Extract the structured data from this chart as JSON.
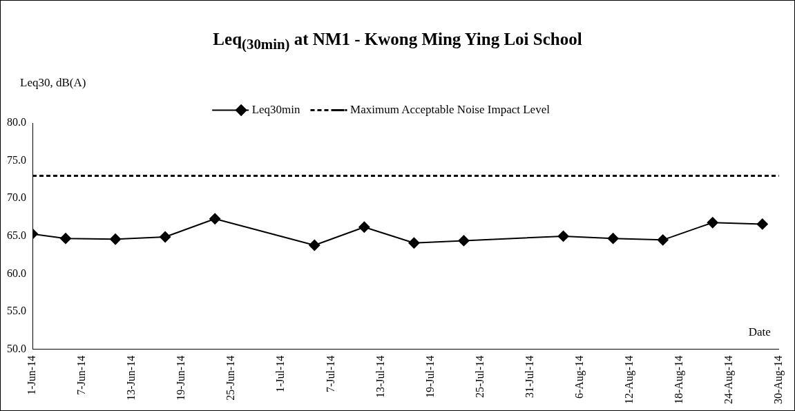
{
  "chart_data": {
    "type": "line",
    "title": "Leq$_{(30min)}$ at NM1 - Kwong Ming Ying Loi School",
    "xlabel": "Date",
    "ylabel": "Leq30, dB(A)",
    "x": [
      "--06-01",
      "--06-05",
      "--06-11",
      "--06-17",
      "--06-23",
      "--07-05",
      "--07-11",
      "--07-17",
      "--07-23",
      "--08-04",
      "--08-10",
      "--08-16",
      "--08-22",
      "--08-28"
    ],
    "series": [
      {
        "name": "Leq30min",
        "color": "#000000",
        "values": [
          65.3,
          64.7,
          64.6,
          64.9,
          67.3,
          63.8,
          66.2,
          64.1,
          64.4,
          65.0,
          64.7,
          64.5,
          66.8,
          66.6
        ]
      }
    ],
    "ref_lines": [
      {
        "axis": "y",
        "value": 73.0,
        "label": "Maximum Acceptable Noise Impact Level",
        "color": "#000000",
        "line_style": "dashed"
      }
    ],
    "xlim": [
      "--06-01",
      "--08-30"
    ],
    "xticks": [
      {
        "value": "--06-01",
        "label": "1-Jun-14"
      },
      {
        "value": "--06-07",
        "label": "7-Jun-14"
      },
      {
        "value": "--06-13",
        "label": "13-Jun-14"
      },
      {
        "value": "--06-19",
        "label": "19-Jun-14"
      },
      {
        "value": "--06-25",
        "label": "25-Jun-14"
      },
      {
        "value": "--07-01",
        "label": "1-Jul-14"
      },
      {
        "value": "--07-07",
        "label": "7-Jul-14"
      },
      {
        "value": "--07-13",
        "label": "13-Jul-14"
      },
      {
        "value": "--07-19",
        "label": "19-Jul-14"
      },
      {
        "value": "--07-25",
        "label": "25-Jul-14"
      },
      {
        "value": "--07-31",
        "label": "31-Jul-14"
      },
      {
        "value": "--08-06",
        "label": "6-Aug-14"
      },
      {
        "value": "--08-12",
        "label": "12-Aug-14"
      },
      {
        "value": "--08-18",
        "label": "18-Aug-14"
      },
      {
        "value": "--08-24",
        "label": "24-Aug-14"
      },
      {
        "value": "--08-30",
        "label": "30-Aug-14"
      }
    ],
    "ylim": [
      50,
      80
    ],
    "yticks": [
      {
        "value": 50,
        "label": "50.0"
      },
      {
        "value": 55,
        "label": "55.0"
      },
      {
        "value": 60,
        "label": "60.0"
      },
      {
        "value": 65,
        "label": "65.0"
      },
      {
        "value": 70,
        "label": "70.0"
      },
      {
        "value": 75,
        "label": "75.0"
      },
      {
        "value": 80,
        "label": "80.0"
      }
    ],
    "grid": false,
    "legend": "top",
    "marker": "diamond",
    "line_style": "solid"
  }
}
